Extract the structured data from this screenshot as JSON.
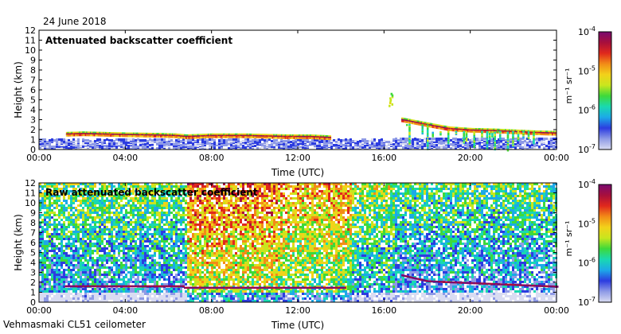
{
  "header": {
    "date": "24 June 2018"
  },
  "footer": {
    "instrument": "Vehmasmaki CL51 ceilometer"
  },
  "colors": {
    "colormap": [
      "#ffffff",
      "#d9dcf2",
      "#8e9ae6",
      "#2c3ce0",
      "#1ca9e8",
      "#19d9b0",
      "#3ed93a",
      "#c8e61e",
      "#f2d21a",
      "#f28c17",
      "#e0281c",
      "#a80f3c",
      "#7a0a70"
    ],
    "background": "#ffffff"
  },
  "chart_data": [
    {
      "type": "heatmap",
      "title": "Attenuated backscatter coefficient",
      "xlabel": "Time (UTC)",
      "ylabel": "Height (km)",
      "xlim": [
        0,
        24
      ],
      "ylim": [
        0,
        12
      ],
      "x_ticks": [
        "00:00",
        "04:00",
        "08:00",
        "12:00",
        "16:00",
        "20:00",
        "00:00"
      ],
      "y_ticks": [
        "0",
        "1",
        "2",
        "3",
        "4",
        "5",
        "6",
        "7",
        "8",
        "9",
        "10",
        "11",
        "12"
      ],
      "colorbar": {
        "label": "m⁻¹ sr⁻¹",
        "scale": "log",
        "range": [
          1e-07,
          0.0001
        ],
        "ticks": [
          {
            "base": "10",
            "exp": "-4",
            "value": -4
          },
          {
            "base": "10",
            "exp": "-5",
            "value": -5
          },
          {
            "base": "10",
            "exp": "-6",
            "value": -6
          },
          {
            "base": "10",
            "exp": "-7",
            "value": -7
          }
        ]
      },
      "cloud_base_km": [
        [
          1.25,
          1.55
        ],
        [
          2.0,
          1.6
        ],
        [
          3.0,
          1.55
        ],
        [
          4.0,
          1.5
        ],
        [
          5.5,
          1.45
        ],
        [
          6.3,
          1.4
        ],
        [
          6.8,
          1.3
        ],
        [
          8.0,
          1.4
        ],
        [
          9.5,
          1.4
        ],
        [
          10.5,
          1.35
        ],
        [
          11.5,
          1.3
        ],
        [
          12.5,
          1.3
        ],
        [
          13.5,
          1.2
        ],
        [
          16.8,
          3.0
        ],
        [
          18.0,
          2.5
        ],
        [
          19.0,
          2.1
        ],
        [
          20.0,
          1.95
        ],
        [
          21.0,
          1.9
        ],
        [
          22.0,
          1.8
        ],
        [
          23.0,
          1.7
        ],
        [
          23.9,
          1.65
        ]
      ],
      "features": [
        "sparse boundary-layer signal below 1 km",
        "cloud layer 1.3–1.7 km",
        "virga/precipitation 16:50–23:00",
        "isolated high cloud 4–6 km near 16:00"
      ]
    },
    {
      "type": "heatmap",
      "title": "Raw attenuated backscatter coefficient",
      "xlabel": "Time (UTC)",
      "ylabel": "Height (km)",
      "xlim": [
        0,
        24
      ],
      "ylim": [
        0,
        12
      ],
      "x_ticks": [
        "00:00",
        "04:00",
        "08:00",
        "12:00",
        "16:00",
        "20:00",
        "00:00"
      ],
      "y_ticks": [
        "0",
        "1",
        "2",
        "3",
        "4",
        "5",
        "6",
        "7",
        "8",
        "9",
        "10",
        "11",
        "12"
      ],
      "colorbar": {
        "label": "m⁻¹ sr⁻¹",
        "scale": "log",
        "range": [
          1e-07,
          0.0001
        ],
        "ticks": [
          {
            "base": "10",
            "exp": "-4",
            "value": -4
          },
          {
            "base": "10",
            "exp": "-5",
            "value": -5
          },
          {
            "base": "10",
            "exp": "-6",
            "value": -6
          },
          {
            "base": "10",
            "exp": "-7",
            "value": -7
          }
        ]
      },
      "noise_segments": [
        {
          "from": 0.0,
          "to": 6.8,
          "level": 0.35
        },
        {
          "from": 6.8,
          "to": 11.0,
          "level": 0.62
        },
        {
          "from": 11.0,
          "to": 14.5,
          "level": 0.55
        },
        {
          "from": 14.5,
          "to": 16.5,
          "level": 0.4
        },
        {
          "from": 16.5,
          "to": 24.0,
          "level": 0.32
        }
      ],
      "features": [
        "daytime solar background noise 06:45–14:30",
        "cloud layer 1.5–1.8 km",
        "precipitation 16:50–23:00"
      ]
    }
  ]
}
